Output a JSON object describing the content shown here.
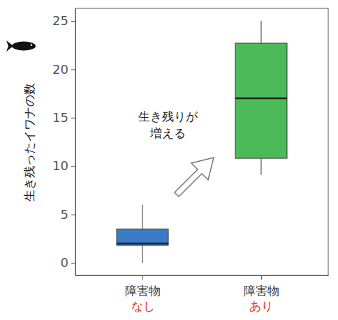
{
  "chart_data": {
    "type": "box",
    "y_label": "生き残ったイワナの数",
    "annotations": [
      {
        "text": "生き残りが\n増える"
      }
    ],
    "categories": [
      "障害物\nなし",
      "障害物\nあり"
    ],
    "boxes": [
      {
        "min": 0,
        "q1": 1.8,
        "median": 2,
        "q3": 3.5,
        "max": 6
      },
      {
        "min": 9.1,
        "q1": 10.8,
        "median": 17,
        "q3": 22.7,
        "max": 25
      }
    ],
    "colors": [
      "#3a7cc7",
      "#4cba58"
    ],
    "ylim": [
      -1.3,
      26.3
    ],
    "yticks": [
      0,
      5,
      10,
      15,
      20,
      25
    ],
    "grid": false
  }
}
